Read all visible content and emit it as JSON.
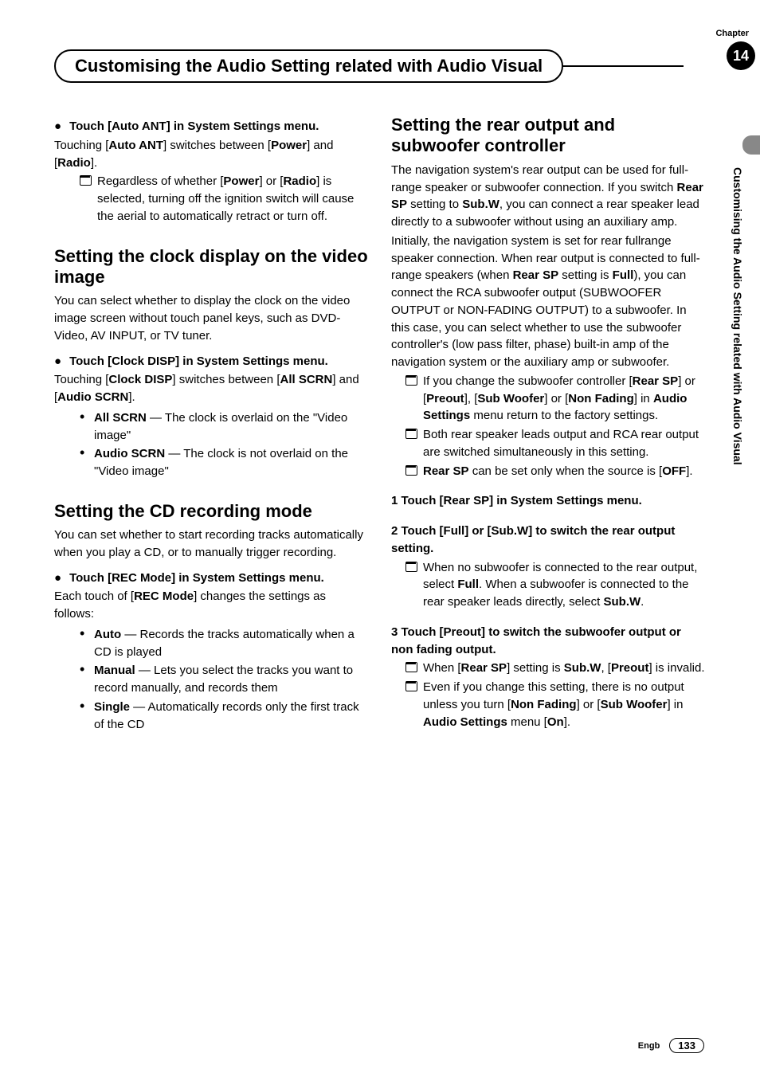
{
  "chapter_label": "Chapter",
  "chapter_number": "14",
  "page_title": "Customising the Audio Setting related with Audio Visual",
  "vertical_label": "Customising the Audio Setting related with Audio Visual",
  "left": {
    "s1_step": "Touch [Auto ANT] in System Settings menu.",
    "s1_body": "Touching [<b>Auto ANT</b>] switches between [<b>Power</b>] and [<b>Radio</b>].",
    "s1_note1": "Regardless of whether [<b>Power</b>] or [<b>Radio</b>] is selected, turning off the ignition switch will cause the aerial to automatically retract or turn off.",
    "s2_title": "Setting the clock display on the video image",
    "s2_body": "You can select whether to display the clock on the video image screen without touch panel keys, such as DVD-Video, AV INPUT, or TV tuner.",
    "s2_step": "Touch [Clock DISP] in System Settings menu.",
    "s2_body2": "Touching [<b>Clock DISP</b>] switches between [<b>All SCRN</b>] and [<b>Audio SCRN</b>].",
    "s2_li1": "<b>All SCRN</b> — The clock is overlaid on the \"Video image\"",
    "s2_li2": "<b>Audio SCRN</b> — The clock is not overlaid on the \"Video image\"",
    "s3_title": "Setting the CD recording mode",
    "s3_body": "You can set whether to start recording tracks automatically when you play a CD, or to manually trigger recording.",
    "s3_step": "Touch [REC Mode] in System Settings menu.",
    "s3_body2": "Each touch of [<b>REC Mode</b>] changes the settings as follows:",
    "s3_li1": "<b>Auto</b> — Records the tracks automatically when a CD is played",
    "s3_li2": "<b>Manual</b> — Lets you select the tracks you want to record manually, and records them",
    "s3_li3": "<b>Single</b> — Automatically records only the first track of the CD"
  },
  "right": {
    "s4_title": "Setting the rear output and subwoofer controller",
    "s4_p1": "The navigation system's rear output can be used for full-range speaker or subwoofer connection. If you switch <b>Rear SP</b> setting to <b>Sub.W</b>, you can connect a rear speaker lead directly to a subwoofer without using an auxiliary amp.",
    "s4_p2": "Initially, the navigation system is set for rear fullrange speaker connection. When rear output is connected to full-range speakers (when <b>Rear SP</b> setting is <b>Full</b>), you can connect the RCA subwoofer output (SUBWOOFER OUTPUT or NON-FADING OUTPUT) to a subwoofer. In this case, you can select whether to use the subwoofer controller's (low pass filter, phase) built-in amp of the navigation system or the auxiliary amp or subwoofer.",
    "s4_n1": "If you change the subwoofer controller [<b>Rear SP</b>] or [<b>Preout</b>], [<b>Sub Woofer</b>] or [<b>Non Fading</b>] in <b>Audio Settings</b> menu return to the factory settings.",
    "s4_n2": "Both rear speaker leads output and RCA rear output are switched simultaneously in this setting.",
    "s4_n3": "<b>Rear SP</b> can be set only when the source is [<b>OFF</b>].",
    "s4_step1": "1    Touch [Rear SP] in System Settings menu.",
    "s4_step2": "2    Touch [Full] or [Sub.W] to switch the rear output setting.",
    "s4_step2_n1": "When no subwoofer is connected to the rear output, select <b>Full</b>. When a subwoofer is connected to the rear speaker leads directly, select <b>Sub.W</b>.",
    "s4_step3": "3    Touch [Preout] to switch the subwoofer output or non fading output.",
    "s4_step3_n1": "When [<b>Rear SP</b>] setting is <b>Sub.W</b>, [<b>Preout</b>] is invalid.",
    "s4_step3_n2": "Even if you change this setting, there is no output unless you turn [<b>Non Fading</b>] or [<b>Sub Woofer</b>] in <b>Audio Settings</b> menu [<b>On</b>]."
  },
  "footer_lang": "Engb",
  "footer_page": "133"
}
